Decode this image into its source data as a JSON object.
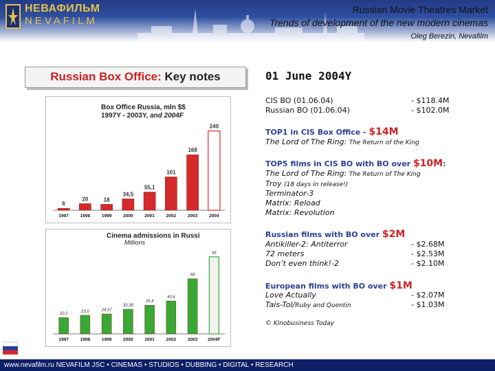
{
  "header": {
    "logo_cyrillic": "НЕВАФИЛЬМ",
    "logo_latin": "NEVAFILM",
    "title": "Russian Movie Theatres Market",
    "subtitle": "Trends of development of the new modern cinemas",
    "author": "Oleg Berezin, Nevafilm"
  },
  "keynotes": {
    "part1": "Russian Box Office:",
    "part2": "Key notes"
  },
  "chart_data": [
    {
      "type": "bar",
      "title": "Box Office Russia, mln $$",
      "subtitle_prefix": "1997Y - 2003Y,",
      "subtitle_suffix": "and 2004F",
      "categories": [
        "1997",
        "1998",
        "1999",
        "2000",
        "2001",
        "2002",
        "2003",
        "2004"
      ],
      "values": [
        6,
        20,
        18,
        34.5,
        55.1,
        101,
        168,
        240
      ],
      "value_labels": [
        "6",
        "20",
        "18",
        "34,5",
        "55,1",
        "101",
        "168",
        "240"
      ],
      "ylim": [
        0,
        260
      ],
      "colors": {
        "normal": "#d42a2a",
        "forecast": "#ffffff"
      }
    },
    {
      "type": "bar",
      "title": "Cinema admissions in Russi",
      "subtitle": "Millions",
      "categories": [
        "1997",
        "1998",
        "1999",
        "2000",
        "2001",
        "2002",
        "2003",
        "2004F"
      ],
      "values": [
        20.2,
        23.0,
        24.57,
        30.38,
        35.4,
        40.6,
        68,
        95
      ],
      "value_labels": [
        "20,2",
        "23,0",
        "24,57",
        "30,38",
        "35,4",
        "40,6",
        "68",
        "95"
      ],
      "ylim": [
        0,
        105
      ],
      "colors": {
        "normal": "#3aa835",
        "forecast": "#f2f2f2"
      }
    }
  ],
  "notes": {
    "date": "01 June 2004Y",
    "cis_bo_label": "CIS BO (01.06.04)",
    "cis_bo_value": "- $118.4M",
    "rus_bo_label": "Russian BO (01.06.04)",
    "rus_bo_value": "- $102.0M",
    "top1_head": "TOP1 in CIS Box Office -",
    "top1_amount": "$14M",
    "top1_film": "The Lord of The Ring:",
    "top1_film_small": "The Return of the King",
    "top5_head": "TOP5 films in CIS BO with BO over",
    "top5_amount": "$10M",
    "top5_colon": ":",
    "top5_film1": "The Lord of The Ring:",
    "top5_film1_small": "The Return of The King",
    "top5_film2": "Troy",
    "top5_film2_small": "(18 days in release!)",
    "top5_film3": "Terminator-3",
    "top5_film4": "Matrix: Reload",
    "top5_film5": "Matrix: Revolution",
    "rus_head": "Russian films with BO over",
    "rus_amount": "$2M",
    "rus_films": [
      {
        "name": "Antikiller-2: Antiterror",
        "value": "- $2.68M"
      },
      {
        "name": "72 meters",
        "value": "- $2.53M"
      },
      {
        "name": "Don’t even think!-2",
        "value": "- $2.10M"
      }
    ],
    "eu_head": "European films with BO over",
    "eu_amount": "$1M",
    "eu_film1": "Love Actually",
    "eu_film1_value": "- $2.07M",
    "eu_film2": "Tais-Tol/",
    "eu_film2_small": "Ruby and Quentin",
    "eu_film2_value": "- $1.03M",
    "source": "© Kinobusiness Today"
  },
  "footer": {
    "text": "www.nevafilm.ru   NEVAFILM JSC • CINEMAS • STUDIOS • DUBBING • DIGITAL • RESEARCH"
  }
}
